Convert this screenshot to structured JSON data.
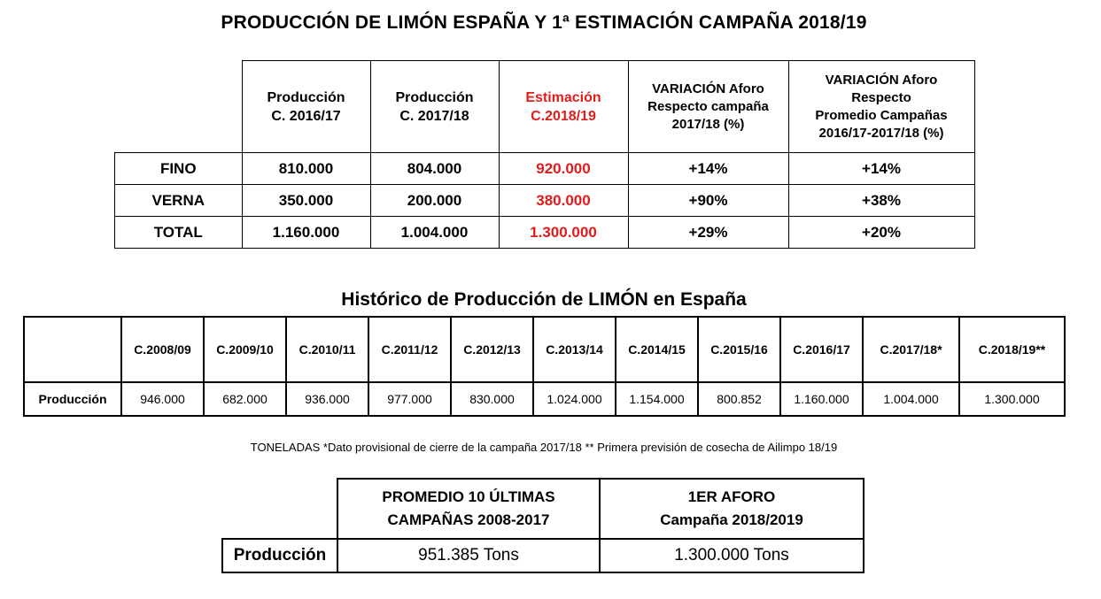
{
  "title_main": "PRODUCCIÓN DE LIMÓN ESPAÑA Y 1ª ESTIMACIÓN CAMPAÑA 2018/19",
  "table1": {
    "headers": [
      {
        "line1": "Producción",
        "line2": "C. 2016/17"
      },
      {
        "line1": "Producción",
        "line2": "C. 2017/18"
      },
      {
        "line1": "Estimación",
        "line2": "C.2018/19"
      },
      {
        "line1": "VARIACIÓN Aforo",
        "line2": "Respecto campaña",
        "line3": "2017/18 (%)"
      },
      {
        "line1": "VARIACIÓN Aforo",
        "line2": "Respecto",
        "line3": "Promedio Campañas",
        "line4": "2016/17-2017/18 (%)"
      }
    ],
    "rows": [
      {
        "label": "FINO",
        "values": [
          "810.000",
          "804.000",
          "920.000",
          "+14%",
          "+14%"
        ]
      },
      {
        "label": "VERNA",
        "values": [
          "350.000",
          "200.000",
          "380.000",
          "+90%",
          "+38%"
        ]
      },
      {
        "label": "TOTAL",
        "values": [
          "1.160.000",
          "1.004.000",
          "1.300.000",
          "+29%",
          "+20%"
        ]
      }
    ],
    "highlight_color": "#e21b1b"
  },
  "title_hist": "Histórico de Producción de LIMÓN en España",
  "table2": {
    "headers": [
      "C.2008/09",
      "C.2009/10",
      "C.2010/11",
      "C.2011/12",
      "C.2012/13",
      "C.2013/14",
      "C.2014/15",
      "C.2015/16",
      "C.2016/17",
      "C.2017/18*",
      "C.2018/19**"
    ],
    "row_label": "Producción",
    "values": [
      "946.000",
      "682.000",
      "936.000",
      "977.000",
      "830.000",
      "1.024.000",
      "1.154.000",
      "800.852",
      "1.160.000",
      "1.004.000",
      "1.300.000"
    ]
  },
  "footnote": "TONELADAS *Dato provisional de cierre de la campaña 2017/18  ** Primera previsión de cosecha de Ailimpo 18/19",
  "table3": {
    "headers": [
      {
        "line1": "PROMEDIO 10 ÚLTIMAS",
        "line2": "CAMPAÑAS 2008-2017"
      },
      {
        "line1": "1ER AFORO",
        "line2": "Campaña 2018/2019"
      }
    ],
    "row_label": "Producción",
    "values": [
      "951.385 Tons",
      "1.300.000 Tons"
    ]
  }
}
